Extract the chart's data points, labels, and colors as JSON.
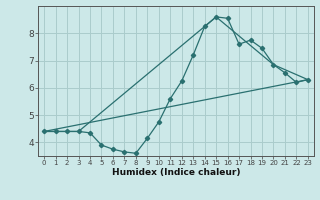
{
  "xlabel": "Humidex (Indice chaleur)",
  "background_color": "#cce8e8",
  "grid_color": "#aacccc",
  "line_color": "#2a7070",
  "xlim": [
    -0.5,
    23.5
  ],
  "ylim": [
    3.5,
    9.0
  ],
  "xticks": [
    0,
    1,
    2,
    3,
    4,
    5,
    6,
    7,
    8,
    9,
    10,
    11,
    12,
    13,
    14,
    15,
    16,
    17,
    18,
    19,
    20,
    21,
    22,
    23
  ],
  "yticks": [
    4,
    5,
    6,
    7,
    8
  ],
  "line1_x": [
    0,
    1,
    2,
    3,
    4,
    5,
    6,
    7,
    8,
    9,
    10,
    11,
    12,
    13,
    14,
    15,
    16,
    17,
    18,
    19,
    20,
    21,
    22,
    23
  ],
  "line1_y": [
    4.4,
    4.4,
    4.4,
    4.4,
    4.35,
    3.9,
    3.75,
    3.65,
    3.6,
    4.15,
    4.75,
    5.6,
    6.25,
    7.2,
    8.25,
    8.6,
    8.55,
    7.6,
    7.75,
    7.45,
    6.85,
    6.55,
    6.2,
    6.3
  ],
  "line2_x": [
    0,
    3,
    14,
    15,
    20,
    23
  ],
  "line2_y": [
    4.4,
    4.4,
    8.25,
    8.6,
    6.85,
    6.3
  ],
  "line3_x": [
    0,
    23
  ],
  "line3_y": [
    4.4,
    6.3
  ]
}
